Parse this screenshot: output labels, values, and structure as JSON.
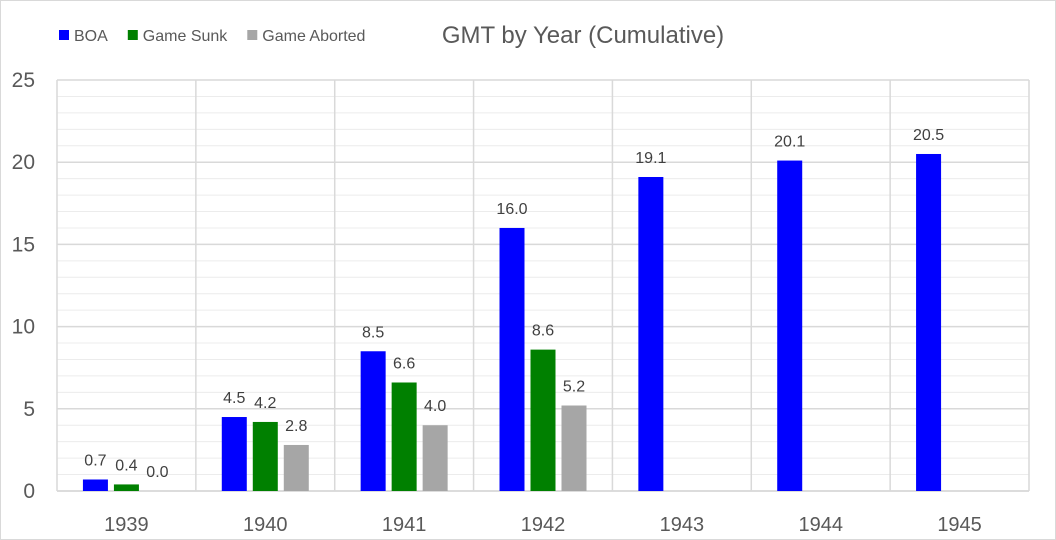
{
  "chart_data": {
    "type": "bar",
    "title": "GMT by Year (Cumulative)",
    "xlabel": "",
    "ylabel": "",
    "categories": [
      "1939",
      "1940",
      "1941",
      "1942",
      "1943",
      "1944",
      "1945"
    ],
    "series": [
      {
        "name": "BOA",
        "color": "#0000ff",
        "values": [
          0.7,
          4.5,
          8.5,
          16.0,
          19.1,
          20.1,
          20.5
        ]
      },
      {
        "name": "Game Sunk",
        "color": "#008000",
        "values": [
          0.4,
          4.2,
          6.6,
          8.6,
          null,
          null,
          null
        ]
      },
      {
        "name": "Game Aborted",
        "color": "#a6a6a6",
        "values": [
          0.0,
          2.8,
          4.0,
          5.2,
          null,
          null,
          null
        ]
      }
    ],
    "ylim": [
      0,
      25
    ],
    "yticks": [
      0,
      5,
      10,
      15,
      20,
      25
    ],
    "grid": true,
    "legend_position": "top-left",
    "data_labels": true,
    "value_format_decimals": 1
  }
}
